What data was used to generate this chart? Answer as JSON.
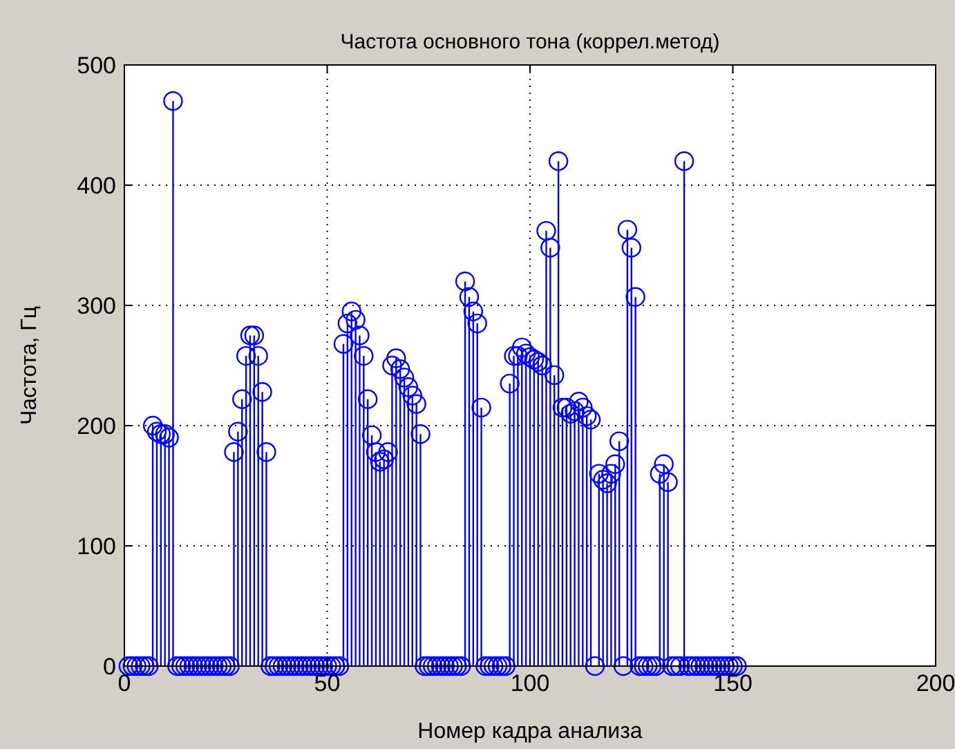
{
  "chart_data": {
    "type": "lollipop",
    "title": "Частота основного тона (коррел.метод)",
    "xlabel": "Номер кадра анализа",
    "ylabel": "Частота, Гц",
    "x": [
      1,
      2,
      3,
      4,
      5,
      6,
      7,
      8,
      9,
      10,
      11,
      12,
      13,
      14,
      15,
      16,
      17,
      18,
      19,
      20,
      21,
      22,
      23,
      24,
      25,
      26,
      27,
      28,
      29,
      30,
      31,
      32,
      33,
      34,
      35,
      36,
      37,
      38,
      39,
      40,
      41,
      42,
      43,
      44,
      45,
      46,
      47,
      48,
      49,
      50,
      51,
      52,
      53,
      54,
      55,
      56,
      57,
      58,
      59,
      60,
      61,
      62,
      63,
      64,
      65,
      66,
      67,
      68,
      69,
      70,
      71,
      72,
      73,
      74,
      75,
      76,
      77,
      78,
      79,
      80,
      81,
      82,
      83,
      84,
      85,
      86,
      87,
      88,
      89,
      90,
      91,
      92,
      93,
      94,
      95,
      96,
      97,
      98,
      99,
      100,
      101,
      102,
      103,
      104,
      105,
      106,
      107,
      108,
      109,
      110,
      111,
      112,
      113,
      114,
      115,
      116,
      117,
      118,
      119,
      120,
      121,
      122,
      123,
      124,
      125,
      126,
      127,
      128,
      129,
      130,
      131,
      132,
      133,
      134,
      135,
      136,
      137,
      138,
      139,
      140,
      141,
      142,
      143,
      144,
      145,
      146,
      147,
      148,
      149,
      150,
      151
    ],
    "series": [
      {
        "color": "#0000ff",
        "values": [
          0,
          0,
          0,
          0,
          0,
          0,
          200,
          195,
          193,
          193,
          190,
          470,
          0,
          0,
          0,
          0,
          0,
          0,
          0,
          0,
          0,
          0,
          0,
          0,
          0,
          0,
          178,
          195,
          222,
          258,
          275,
          275,
          258,
          228,
          178,
          0,
          0,
          0,
          0,
          0,
          0,
          0,
          0,
          0,
          0,
          0,
          0,
          0,
          0,
          0,
          0,
          0,
          0,
          268,
          285,
          295,
          288,
          275,
          258,
          222,
          192,
          178,
          170,
          172,
          178,
          250,
          256,
          247,
          240,
          232,
          225,
          218,
          193,
          0,
          0,
          0,
          0,
          0,
          0,
          0,
          0,
          0,
          0,
          320,
          307,
          295,
          285,
          215,
          0,
          0,
          0,
          0,
          0,
          0,
          235,
          258,
          258,
          265,
          260,
          257,
          255,
          253,
          250,
          362,
          348,
          242,
          420,
          215,
          215,
          210,
          212,
          220,
          215,
          208,
          205,
          0,
          160,
          155,
          152,
          160,
          168,
          187,
          0,
          363,
          348,
          307,
          0,
          0,
          0,
          0,
          0,
          160,
          168,
          153,
          0,
          0,
          0,
          420,
          0,
          0,
          0,
          0,
          0,
          0,
          0,
          0,
          0,
          0,
          0,
          0,
          0
        ]
      }
    ],
    "xlim": [
      0,
      200
    ],
    "ylim": [
      0,
      500
    ],
    "xticks": [
      0,
      50,
      100,
      150,
      200
    ],
    "yticks": [
      0,
      100,
      200,
      300,
      400,
      500
    ],
    "grid": true,
    "marker": "circle"
  }
}
